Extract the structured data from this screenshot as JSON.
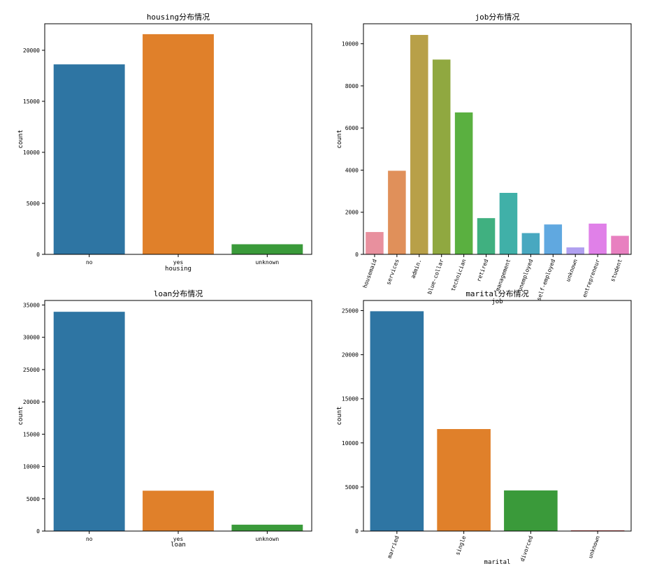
{
  "chart_data": [
    {
      "type": "bar",
      "title": "housing分布情况",
      "xlabel": "housing",
      "ylabel": "count",
      "categories": [
        "no",
        "yes",
        "unknown"
      ],
      "values": [
        18620,
        21580,
        990
      ],
      "colors": [
        "#2e75a3",
        "#e0802a",
        "#3a9a3a"
      ],
      "ylim": [
        0,
        22600
      ],
      "yticks": [
        0,
        5000,
        10000,
        15000,
        20000
      ],
      "rotate_labels": false
    },
    {
      "type": "bar",
      "title": "job分布情况",
      "xlabel": "job",
      "ylabel": "count",
      "categories": [
        "housemaid",
        "services",
        "admin.",
        "blue-collar",
        "technician",
        "retired",
        "management",
        "unemployed",
        "self-employed",
        "unknown",
        "entrepreneur",
        "student"
      ],
      "values": [
        1060,
        3970,
        10420,
        9250,
        6740,
        1720,
        2920,
        1010,
        1420,
        330,
        1460,
        880
      ],
      "colors": [
        "#e8909e",
        "#e0905a",
        "#b8a048",
        "#90a840",
        "#5ab040",
        "#40b080",
        "#40b0a8",
        "#48a8c0",
        "#60a8e0",
        "#b0a0f0",
        "#e080e8",
        "#e880c0"
      ],
      "ylim": [
        0,
        10950
      ],
      "yticks": [
        0,
        2000,
        4000,
        6000,
        8000,
        10000
      ],
      "rotate_labels": true
    },
    {
      "type": "bar",
      "title": "loan分布情况",
      "xlabel": "loan",
      "ylabel": "count",
      "categories": [
        "no",
        "yes",
        "unknown"
      ],
      "values": [
        33950,
        6250,
        990
      ],
      "colors": [
        "#2e75a3",
        "#e0802a",
        "#3a9a3a"
      ],
      "ylim": [
        0,
        35700
      ],
      "yticks": [
        0,
        5000,
        10000,
        15000,
        20000,
        25000,
        30000,
        35000
      ],
      "rotate_labels": false
    },
    {
      "type": "bar",
      "title": "marital分布情况",
      "xlabel": "marital",
      "ylabel": "count",
      "categories": [
        "married",
        "single",
        "divorced",
        "unknown"
      ],
      "values": [
        24930,
        11570,
        4610,
        80
      ],
      "colors": [
        "#2e75a3",
        "#e0802a",
        "#3a9a3a",
        "#c03a3a"
      ],
      "ylim": [
        0,
        26150
      ],
      "yticks": [
        0,
        5000,
        10000,
        15000,
        20000,
        25000
      ],
      "rotate_labels": true
    }
  ]
}
